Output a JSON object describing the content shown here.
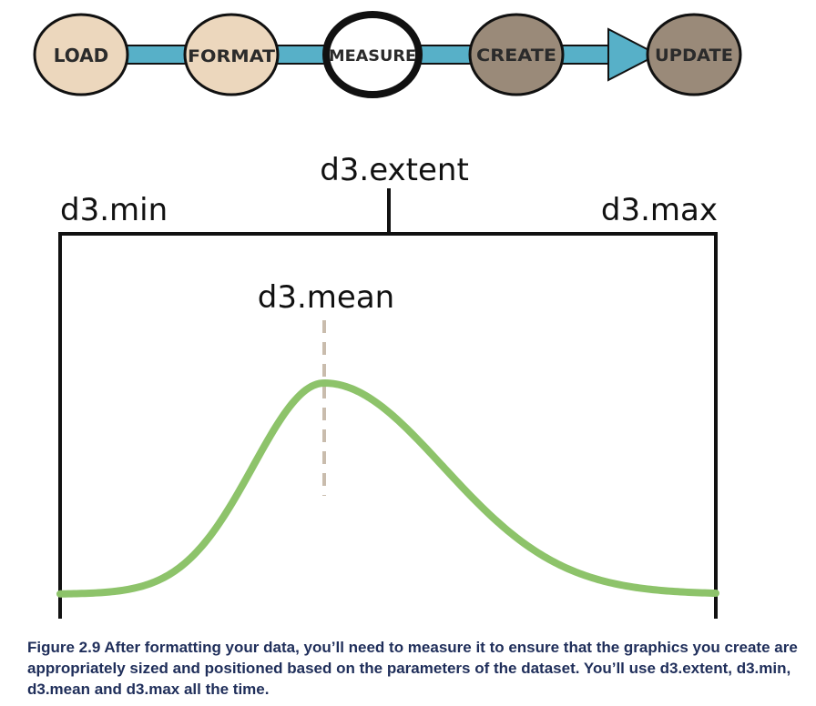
{
  "pipeline": {
    "steps": [
      {
        "label": "LOAD",
        "state": "done"
      },
      {
        "label": "FORMAT",
        "state": "done"
      },
      {
        "label": "MEASURE",
        "state": "current"
      },
      {
        "label": "CREATE",
        "state": "upcoming"
      },
      {
        "label": "UPDATE",
        "state": "upcoming"
      }
    ],
    "colors": {
      "done_fill": "#ecd7bd",
      "current_fill": "#ffffff",
      "upcoming_fill": "#9a8a79",
      "outline": "#111111",
      "arrow": "#57b0c8"
    }
  },
  "diagram": {
    "extent_label": "d3.extent",
    "min_label": "d3.min",
    "max_label": "d3.max",
    "mean_label": "d3.mean",
    "colors": {
      "curve": "#8dc36a",
      "mean_dash": "#c9bcad",
      "bracket": "#111111"
    }
  },
  "caption": "Figure 2.9 After formatting your data, you’ll need to measure it to ensure that the graphics you create are appropriately sized and positioned based on the parameters of the dataset. You’ll use d3.extent, d3.min, d3.mean and d3.max all the time."
}
